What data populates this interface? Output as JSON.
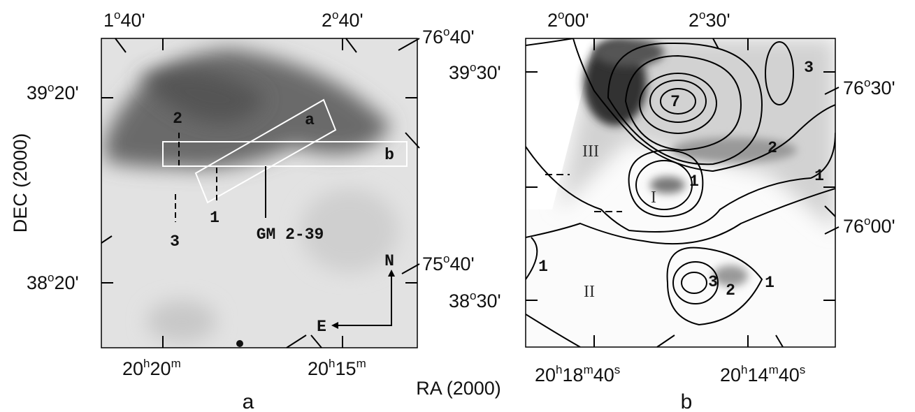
{
  "figure": {
    "axis_labels": {
      "dec": "DEC (2000)",
      "ra": "RA (2000)"
    },
    "panel_letters": [
      "a",
      "b"
    ],
    "panel_a": {
      "coordinate_labels": [
        [
          "1",
          "o",
          "40'"
        ],
        [
          "2",
          "o",
          "40'"
        ],
        [
          "76",
          "o",
          "40'"
        ],
        [
          "39",
          "o",
          "20'"
        ],
        [
          "38",
          "o",
          "20'"
        ],
        [
          "75",
          "o",
          "40'"
        ],
        [
          "20",
          "h",
          "20",
          "m"
        ],
        [
          "20",
          "h",
          "15",
          "m"
        ]
      ],
      "annotations": [
        "2",
        "a",
        "b",
        "3",
        "1",
        "GM 2-39",
        "N",
        "E"
      ]
    },
    "panel_b": {
      "coordinate_labels": [
        [
          "2",
          "o",
          "00'"
        ],
        [
          "2",
          "o",
          "30'"
        ],
        [
          "39",
          "o",
          "30'"
        ],
        [
          "38",
          "o",
          "30'"
        ],
        [
          "76",
          "o",
          "30'"
        ],
        [
          "76",
          "o",
          "00'"
        ],
        [
          "20",
          "h",
          "18",
          "m",
          "40",
          "s"
        ],
        [
          "20",
          "h",
          "14",
          "m",
          "40",
          "s"
        ]
      ],
      "contour_labels": [
        "7",
        "3",
        "2",
        "1",
        "1",
        "1",
        "3",
        "2",
        "1"
      ],
      "region_labels": [
        "III",
        "I",
        "II"
      ]
    }
  }
}
